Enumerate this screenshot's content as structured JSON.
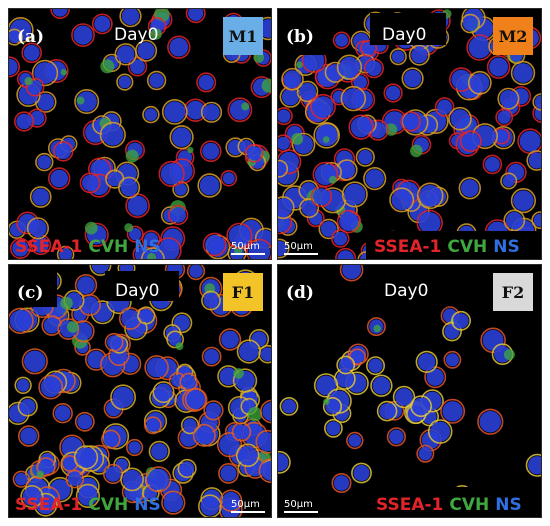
{
  "panels": [
    {
      "label": "(a)",
      "day": "Day0",
      "tag": "M1",
      "tag_color": "#6aaee8",
      "scale": "50μm",
      "density": "medium"
    },
    {
      "label": "(b)",
      "day": "Day0",
      "tag": "M2",
      "tag_color": "#f0801a",
      "scale": "50μm",
      "density": "high"
    },
    {
      "label": "(c)",
      "day": "Day0",
      "tag": "F1",
      "tag_color": "#f2c428",
      "scale": "50μm",
      "density": "high"
    },
    {
      "label": "(d)",
      "day": "Day0",
      "tag": "F2",
      "tag_color": "#d9d9d9",
      "scale": "50μm",
      "density": "sparse"
    }
  ],
  "legend": {
    "ssea": "SSEA-1",
    "cvh": "CVH",
    "ns": "NS"
  },
  "colors": {
    "ssea": "#e0242a",
    "cvh": "#3ea83e",
    "ns": "#2f6fe0",
    "nucleus": "#2a3fd6"
  }
}
